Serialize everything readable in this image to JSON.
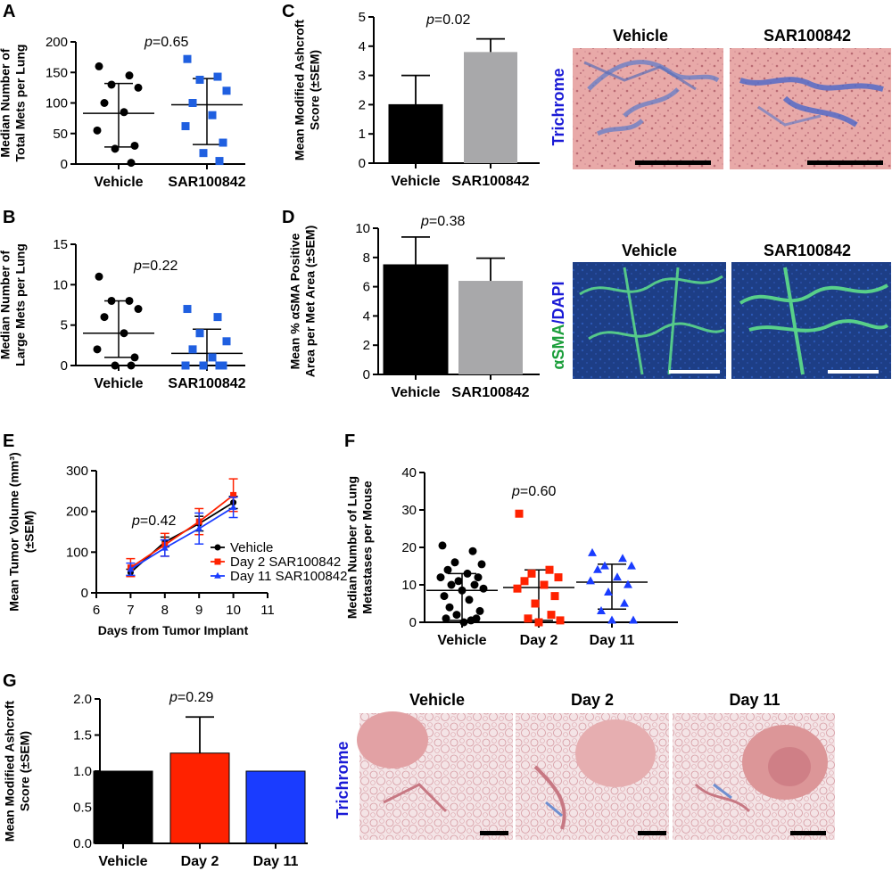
{
  "panels": {
    "A": {
      "letter": "A",
      "p_italic": "p",
      "p_rest": "=0.65"
    },
    "B": {
      "letter": "B",
      "p_italic": "p",
      "p_rest": "=0.22"
    },
    "C": {
      "letter": "C",
      "p_italic": "p",
      "p_rest": "=0.02",
      "image_titles": [
        "Vehicle",
        "SAR100842"
      ],
      "stain": "Trichrome"
    },
    "D": {
      "letter": "D",
      "p_italic": "p",
      "p_rest": "=0.38",
      "image_titles": [
        "Vehicle",
        "SAR100842"
      ],
      "stain_a": "αSMA",
      "stain_sep": "/",
      "stain_b": "DAPI"
    },
    "E": {
      "letter": "E",
      "p_italic": "p",
      "p_rest": "=0.42"
    },
    "F": {
      "letter": "F",
      "p_italic": "p",
      "p_rest": "=0.60"
    },
    "G": {
      "letter": "G",
      "p_italic": "p",
      "p_rest": "=0.29",
      "image_titles": [
        "Vehicle",
        "Day 2",
        "Day 11"
      ],
      "stain": "Trichrome"
    }
  },
  "colors": {
    "black": "#000000",
    "red": "#ff2200",
    "blue": "#1a3cff",
    "gray": "#a8a8aa",
    "scatter_blue": "#1f5fe0",
    "green_stain": "#1a9e3a",
    "blue_stain": "#1a1ad6"
  },
  "chart_data": [
    {
      "id": "A",
      "type": "scatter",
      "ylabel_lines": [
        "Median Number of",
        "Total Mets per Lung"
      ],
      "ylim": [
        0,
        200
      ],
      "yticks": [
        0,
        50,
        100,
        150,
        200
      ],
      "categories": [
        "Vehicle",
        "SAR100842"
      ],
      "series": [
        {
          "name": "Vehicle",
          "color": "#000000",
          "marker": "circle",
          "values": [
            160,
            145,
            130,
            125,
            100,
            85,
            55,
            30,
            25,
            2
          ],
          "median": 83,
          "err": [
            28,
            132
          ]
        },
        {
          "name": "SAR100842",
          "color": "#1f5fe0",
          "marker": "square",
          "values": [
            172,
            143,
            138,
            120,
            100,
            80,
            62,
            35,
            18,
            5
          ],
          "median": 97,
          "err": [
            32,
            140
          ]
        }
      ]
    },
    {
      "id": "B",
      "type": "scatter",
      "ylabel_lines": [
        "Median Number of",
        "Large Mets per Lung"
      ],
      "ylim": [
        0,
        15
      ],
      "yticks": [
        0,
        5,
        10,
        15
      ],
      "categories": [
        "Vehicle",
        "SAR100842"
      ],
      "series": [
        {
          "name": "Vehicle",
          "color": "#000000",
          "marker": "circle",
          "values": [
            11,
            8,
            8,
            7,
            6,
            4,
            2,
            1,
            0,
            0
          ],
          "median": 4,
          "err": [
            1,
            8
          ]
        },
        {
          "name": "SAR100842",
          "color": "#1f5fe0",
          "marker": "square",
          "values": [
            7,
            6,
            4,
            3,
            2,
            1,
            0,
            0,
            0,
            0
          ],
          "median": 1.5,
          "err": [
            0,
            4.5
          ]
        }
      ]
    },
    {
      "id": "C",
      "type": "bar",
      "ylabel_lines": [
        "Mean Modified Ashcroft",
        "Score (±SEM)"
      ],
      "ylim": [
        0,
        5
      ],
      "yticks": [
        0,
        1,
        2,
        3,
        4,
        5
      ],
      "categories": [
        "Vehicle",
        "SAR100842"
      ],
      "values": [
        2.0,
        3.8
      ],
      "errors": [
        1.0,
        0.45
      ],
      "colors": [
        "#000000",
        "#a8a8aa"
      ]
    },
    {
      "id": "D",
      "type": "bar",
      "ylabel_lines": [
        "Mean % αSMA Positive",
        "Area per Met Area (±SEM)"
      ],
      "ylim": [
        0,
        10
      ],
      "yticks": [
        0,
        2,
        4,
        6,
        8,
        10
      ],
      "categories": [
        "Vehicle",
        "SAR100842"
      ],
      "values": [
        7.5,
        6.4
      ],
      "errors": [
        1.9,
        1.55
      ],
      "colors": [
        "#000000",
        "#a8a8aa"
      ]
    },
    {
      "id": "E",
      "type": "line",
      "ylabel_lines": [
        "Mean Tumor Volume (mm³)",
        "(±SEM)"
      ],
      "xlabel": "Days from Tumor Implant",
      "xlim": [
        6,
        11
      ],
      "xticks": [
        6,
        7,
        8,
        9,
        10,
        11
      ],
      "ylim": [
        0,
        300
      ],
      "yticks": [
        0,
        100,
        200,
        300
      ],
      "x": [
        7,
        8,
        9,
        10
      ],
      "series": [
        {
          "name": "Vehicle",
          "color": "#000000",
          "marker": "circle",
          "values": [
            50,
            125,
            170,
            222
          ],
          "errors": [
            8,
            12,
            18,
            15
          ]
        },
        {
          "name": "Day 2 SAR100842",
          "color": "#ff2200",
          "marker": "square",
          "values": [
            62,
            118,
            175,
            240
          ],
          "errors": [
            22,
            28,
            32,
            40
          ]
        },
        {
          "name": "Day 11 SAR100842",
          "color": "#1a3cff",
          "marker": "triangle",
          "values": [
            58,
            110,
            158,
            210
          ],
          "errors": [
            15,
            20,
            38,
            25
          ]
        }
      ]
    },
    {
      "id": "F",
      "type": "scatter",
      "ylabel_lines": [
        "Median Number of Lung",
        "Metastases per Mouse"
      ],
      "ylim": [
        0,
        40
      ],
      "yticks": [
        0,
        10,
        20,
        30,
        40
      ],
      "categories": [
        "Vehicle",
        "Day 2",
        "Day 11"
      ],
      "series": [
        {
          "name": "Vehicle",
          "color": "#000000",
          "marker": "circle",
          "values": [
            20.5,
            19,
            16,
            15.5,
            14,
            13,
            12,
            12,
            11,
            10,
            10,
            9,
            8.5,
            7,
            6,
            4,
            3,
            2,
            1,
            1,
            0.5,
            0
          ],
          "median": 8.5,
          "err": [
            0.5,
            13
          ]
        },
        {
          "name": "Day 2",
          "color": "#ff2200",
          "marker": "square",
          "values": [
            29,
            14,
            13,
            12,
            11,
            10,
            9,
            7,
            5,
            2,
            1,
            0.5,
            0
          ],
          "median": 9.3,
          "err": [
            0.5,
            14
          ]
        },
        {
          "name": "Day 11",
          "color": "#1a3cff",
          "marker": "triangle",
          "values": [
            18.5,
            17,
            15,
            15,
            14,
            12,
            11,
            10,
            8,
            5,
            3,
            0.5,
            0.5
          ],
          "median": 10.7,
          "err": [
            3.5,
            15.5
          ]
        }
      ]
    },
    {
      "id": "G",
      "type": "bar",
      "ylabel_lines": [
        "Mean Modified Ashcroft",
        "Score (±SEM)"
      ],
      "ylim": [
        0,
        2.0
      ],
      "yticks": [
        "0.0",
        "0.5",
        "1.0",
        "1.5",
        "2.0"
      ],
      "categories": [
        "Vehicle",
        "Day 2",
        "Day 11"
      ],
      "values": [
        1.0,
        1.25,
        1.0
      ],
      "errors": [
        0,
        0.5,
        0
      ],
      "colors": [
        "#000000",
        "#ff2200",
        "#1a3cff"
      ]
    }
  ]
}
